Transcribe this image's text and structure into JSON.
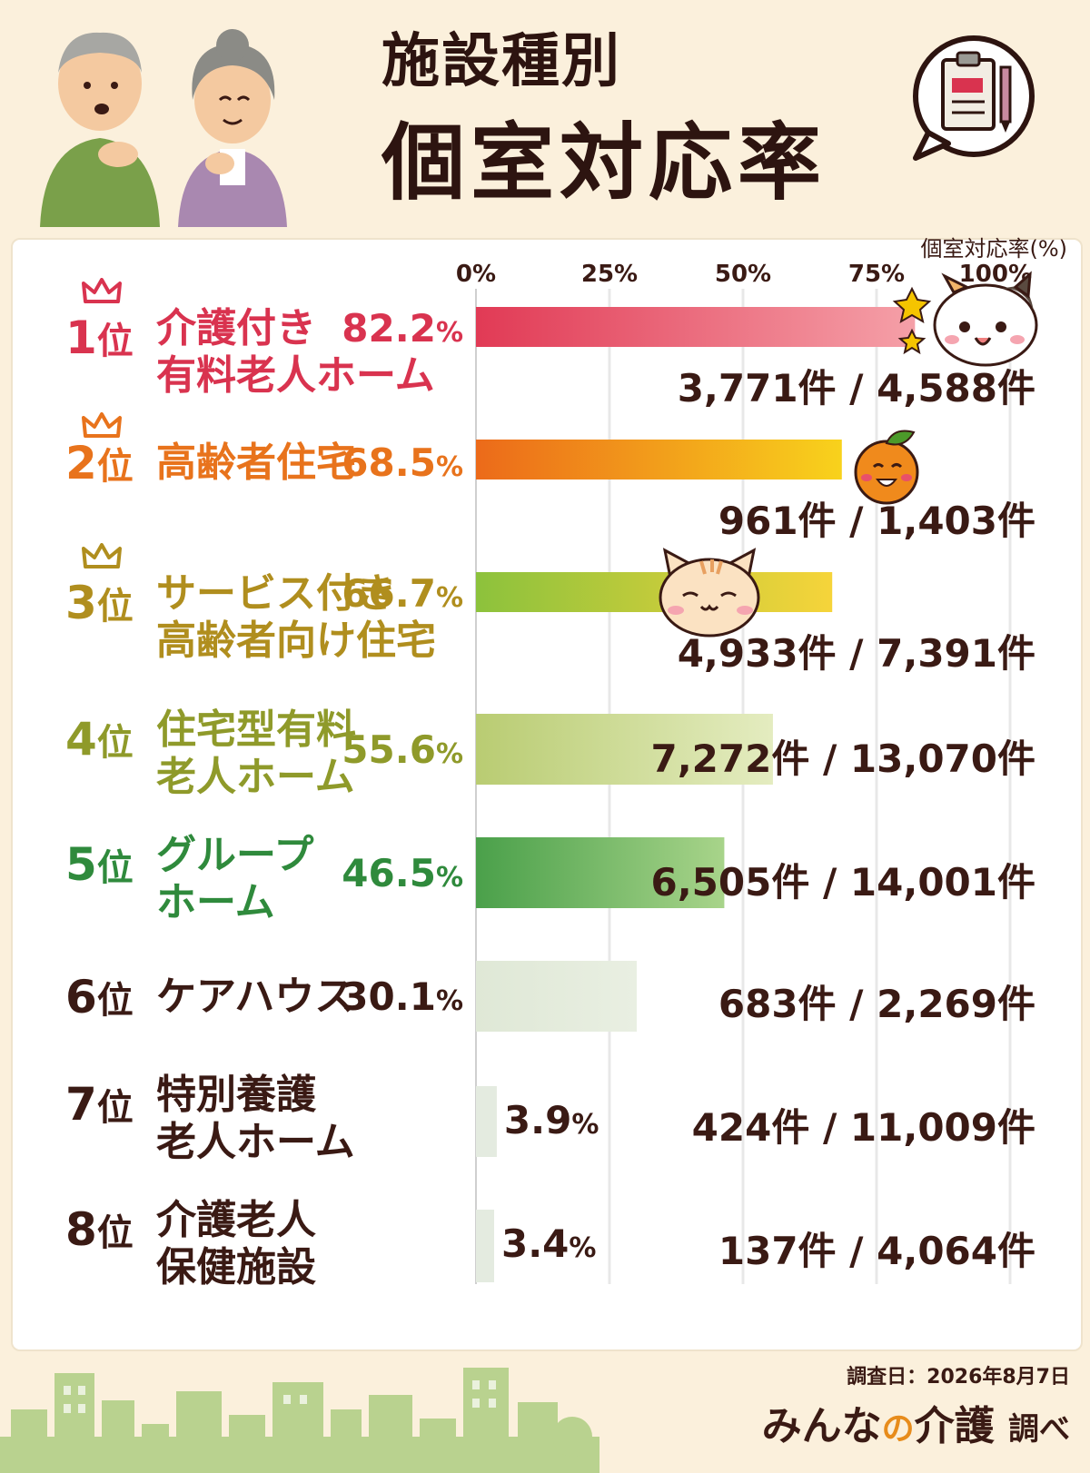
{
  "header": {
    "title_line1": "施設種別",
    "title_line2": "個室対応率"
  },
  "icons": {
    "elderly_couple": "elderly-couple-illustration",
    "clipboard": "clipboard-icon",
    "mascots": [
      "calico-cat-icon",
      "mandarin-orange-icon",
      "tabby-cat-icon"
    ],
    "footer": "city-skyline-illustration"
  },
  "chart_data": {
    "type": "bar",
    "orientation": "horizontal",
    "ylabel": "個室対応率(%)",
    "xlim": [
      0,
      100
    ],
    "ticks": [
      "0%",
      "25%",
      "50%",
      "75%",
      "100%"
    ],
    "grid": true,
    "categories": [
      {
        "rank": "1",
        "rank_suffix": "位",
        "name_lines": [
          "介護付き",
          "有料老人ホーム"
        ],
        "value": 82.2,
        "pct_text": "82.2",
        "count": "3,771件 / 4,588件",
        "color": "#d9334f"
      },
      {
        "rank": "2",
        "rank_suffix": "位",
        "name_lines": [
          "高齢者住宅"
        ],
        "value": 68.5,
        "pct_text": "68.5",
        "count": "961件 / 1,403件",
        "color": "#e8731c"
      },
      {
        "rank": "3",
        "rank_suffix": "位",
        "name_lines": [
          "サービス付き",
          "高齢者向け住宅"
        ],
        "value": 66.7,
        "pct_text": "66.7",
        "count": "4,933件 / 7,391件",
        "color": "#b08e1e"
      },
      {
        "rank": "4",
        "rank_suffix": "位",
        "name_lines": [
          "住宅型有料",
          "老人ホーム"
        ],
        "value": 55.6,
        "pct_text": "55.6",
        "count": "7,272件 / 13,070件",
        "color": "#8f9a2a"
      },
      {
        "rank": "5",
        "rank_suffix": "位",
        "name_lines": [
          "グループ",
          "ホーム"
        ],
        "value": 46.5,
        "pct_text": "46.5",
        "count": "6,505件 / 14,001件",
        "color": "#2f8a3c"
      },
      {
        "rank": "6",
        "rank_suffix": "位",
        "name_lines": [
          "ケアハウス"
        ],
        "value": 30.1,
        "pct_text": "30.1",
        "count": "683件 / 2,269件",
        "color": "#3a1a14"
      },
      {
        "rank": "7",
        "rank_suffix": "位",
        "name_lines": [
          "特別養護",
          "老人ホーム"
        ],
        "value": 3.9,
        "pct_text": "3.9",
        "count": "424件 / 11,009件",
        "color": "#3a1a14"
      },
      {
        "rank": "8",
        "rank_suffix": "位",
        "name_lines": [
          "介護老人",
          "保健施設"
        ],
        "value": 3.4,
        "pct_text": "3.4",
        "count": "137件 / 4,064件",
        "color": "#3a1a14"
      }
    ],
    "pct_unit": "%"
  },
  "footer": {
    "survey_date": "調査日：2026年8月7日",
    "brand_main1": "みんな",
    "brand_accent": "の",
    "brand_main2": "介護",
    "brand_small": "調べ"
  }
}
